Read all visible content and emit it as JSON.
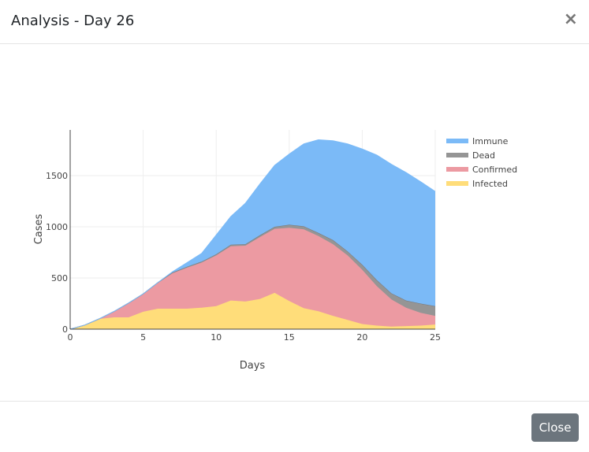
{
  "dialog": {
    "title": "Analysis - Day 26",
    "close_icon": "×",
    "close_label": "Close"
  },
  "chart_data": {
    "type": "area",
    "stacked": true,
    "xlabel": "Days",
    "ylabel": "Cases",
    "xlim": [
      0,
      25
    ],
    "ylim": [
      0,
      1946
    ],
    "xticks": [
      0,
      5,
      10,
      15,
      20,
      25
    ],
    "yticks": [
      0,
      500,
      1000,
      1500
    ],
    "grid": true,
    "legend_position": "right",
    "x": [
      0,
      1,
      2,
      3,
      4,
      5,
      6,
      7,
      8,
      9,
      10,
      11,
      12,
      13,
      14,
      15,
      16,
      17,
      18,
      19,
      20,
      21,
      22,
      23,
      24,
      25
    ],
    "series": [
      {
        "name": "Infected",
        "color": "#ffdd7a",
        "values": [
          0,
          40,
          100,
          115,
          115,
          170,
          200,
          200,
          200,
          210,
          225,
          280,
          270,
          295,
          355,
          275,
          205,
          175,
          130,
          90,
          50,
          35,
          25,
          30,
          35,
          45
        ]
      },
      {
        "name": "Confirmed",
        "color": "#ec9aa2",
        "values": [
          0,
          0,
          0,
          55,
          135,
          170,
          250,
          345,
          400,
          440,
          495,
          530,
          545,
          605,
          625,
          715,
          770,
          735,
          700,
          630,
          530,
          385,
          265,
          180,
          125,
          85
        ]
      },
      {
        "name": "Dead",
        "color": "#959595",
        "values": [
          0,
          0,
          2,
          3,
          5,
          5,
          5,
          8,
          10,
          10,
          12,
          15,
          15,
          18,
          20,
          30,
          30,
          30,
          40,
          40,
          50,
          60,
          60,
          70,
          90,
          95
        ]
      },
      {
        "name": "Immune",
        "color": "#7bbaf7",
        "values": [
          0,
          0,
          0,
          0,
          0,
          0,
          0,
          7,
          40,
          80,
          188,
          275,
          400,
          502,
          600,
          690,
          805,
          910,
          970,
          1050,
          1130,
          1220,
          1260,
          1250,
          1190,
          1120
        ]
      }
    ]
  }
}
